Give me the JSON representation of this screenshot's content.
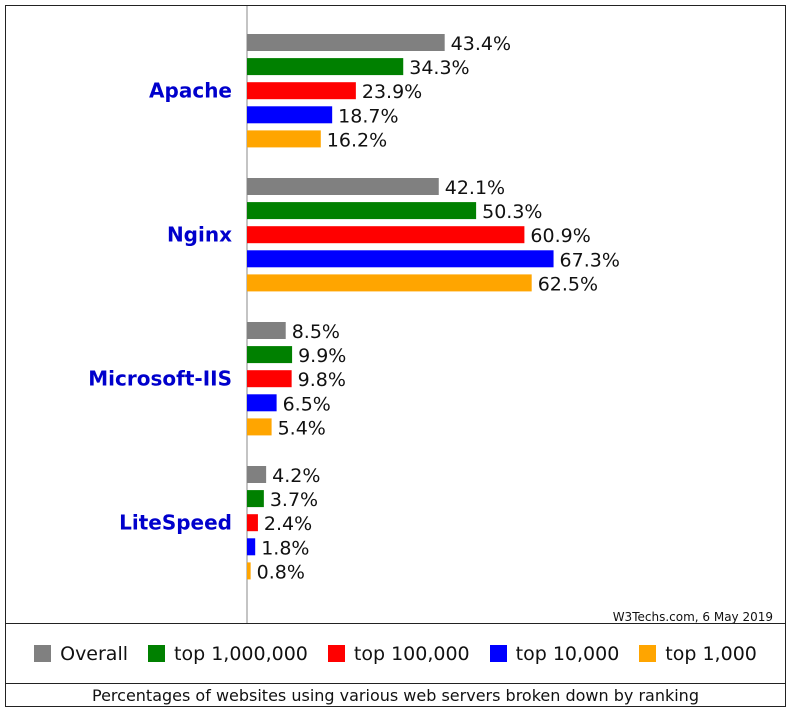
{
  "chart_data": {
    "type": "bar",
    "orientation": "horizontal",
    "categories": [
      "Apache",
      "Nginx",
      "Microsoft-IIS",
      "LiteSpeed"
    ],
    "series": [
      {
        "name": "Overall",
        "color": "#808080",
        "values": [
          43.4,
          42.1,
          8.5,
          4.2
        ]
      },
      {
        "name": "top 1,000,000",
        "color": "#008000",
        "values": [
          34.3,
          50.3,
          9.9,
          3.7
        ]
      },
      {
        "name": "top 100,000",
        "color": "#ff0000",
        "values": [
          23.9,
          60.9,
          9.8,
          2.4
        ]
      },
      {
        "name": "top 10,000",
        "color": "#0000ff",
        "values": [
          18.7,
          67.3,
          6.5,
          1.8
        ]
      },
      {
        "name": "top 1,000",
        "color": "#ffa500",
        "values": [
          16.2,
          62.5,
          5.4,
          0.8
        ]
      }
    ],
    "value_labels": [
      [
        "43.4%",
        "34.3%",
        "23.9%",
        "18.7%",
        "16.2%"
      ],
      [
        "42.1%",
        "50.3%",
        "60.9%",
        "67.3%",
        "62.5%"
      ],
      [
        "8.5%",
        "9.9%",
        "9.8%",
        "6.5%",
        "5.4%"
      ],
      [
        "4.2%",
        "3.7%",
        "2.4%",
        "1.8%",
        "0.8%"
      ]
    ],
    "xlim": [
      0,
      100
    ],
    "legend_position": "bottom",
    "grid": false,
    "caption": "Percentages of websites using various web servers broken down by ranking",
    "credit": "W3Techs.com, 6 May 2019"
  }
}
